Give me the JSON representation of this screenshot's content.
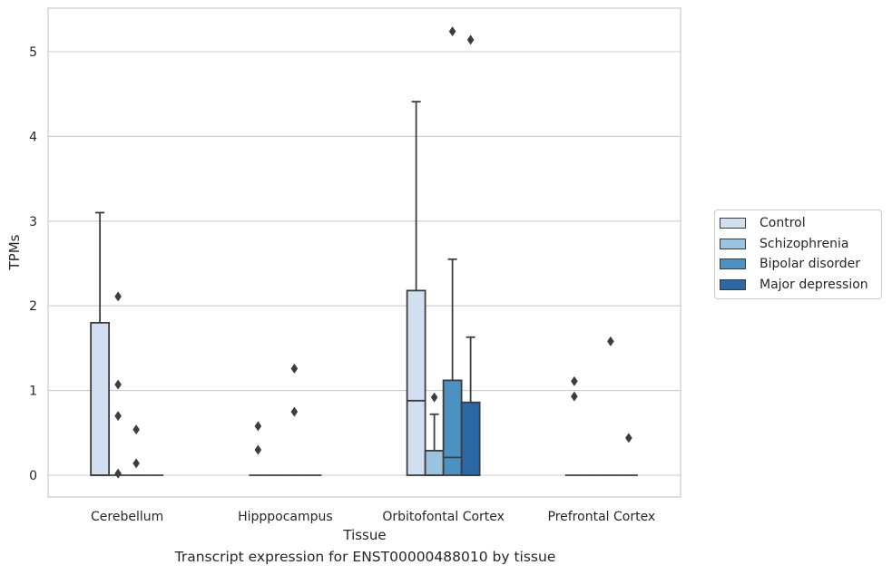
{
  "chart_data": {
    "type": "box",
    "ylabel": "TPMs",
    "xlabel": "Tissue",
    "caption": "Transcript expression for ENST00000488010 by tissue",
    "ylim": [
      -0.25,
      5.5
    ],
    "yticks": [
      0,
      1,
      2,
      3,
      4,
      5
    ],
    "ytick_labels": [
      "0",
      "1",
      "2",
      "3",
      "4",
      "5"
    ],
    "grid": true,
    "legend_position": "right",
    "categories": [
      "Cerebellum",
      "Hipppocampus",
      "Orbitofontal Cortex",
      "Prefrontal Cortex"
    ],
    "series": [
      {
        "name": "Control",
        "color": "#d1e0f0",
        "boxes": [
          {
            "q1": 0,
            "median": 0,
            "q3": 1.8,
            "whislo": 0,
            "whishi": 3.1,
            "fliers": []
          },
          {
            "q1": 0,
            "median": 0,
            "q3": 0,
            "whislo": 0,
            "whishi": 0,
            "fliers": [
              0.3,
              0.58
            ]
          },
          {
            "q1": 0,
            "median": 0.88,
            "q3": 2.18,
            "whislo": 0,
            "whishi": 4.41,
            "fliers": []
          },
          {
            "q1": 0,
            "median": 0,
            "q3": 0,
            "whislo": 0,
            "whishi": 0,
            "fliers": [
              0.93,
              1.11
            ]
          }
        ]
      },
      {
        "name": "Schizophrenia",
        "color": "#9cc3dd",
        "boxes": [
          {
            "q1": 0,
            "median": 0,
            "q3": 0,
            "whislo": 0,
            "whishi": 0,
            "fliers": [
              0.02,
              0.7,
              1.07,
              2.11
            ]
          },
          {
            "q1": 0,
            "median": 0,
            "q3": 0,
            "whislo": 0,
            "whishi": 0,
            "fliers": []
          },
          {
            "q1": 0,
            "median": 0,
            "q3": 0.29,
            "whislo": 0,
            "whishi": 0.72,
            "fliers": [
              0.92
            ]
          },
          {
            "q1": 0,
            "median": 0,
            "q3": 0,
            "whislo": 0,
            "whishi": 0,
            "fliers": []
          }
        ]
      },
      {
        "name": "Bipolar disorder",
        "color": "#4b92c3",
        "boxes": [
          {
            "q1": 0,
            "median": 0,
            "q3": 0,
            "whislo": 0,
            "whishi": 0,
            "fliers": [
              0.14,
              0.54
            ]
          },
          {
            "q1": 0,
            "median": 0,
            "q3": 0,
            "whislo": 0,
            "whishi": 0,
            "fliers": [
              0.75,
              1.26
            ]
          },
          {
            "q1": 0,
            "median": 0.21,
            "q3": 1.12,
            "whislo": 0,
            "whishi": 2.55,
            "fliers": [
              5.24
            ]
          },
          {
            "q1": 0,
            "median": 0,
            "q3": 0,
            "whislo": 0,
            "whishi": 0,
            "fliers": [
              1.58
            ]
          }
        ]
      },
      {
        "name": "Major depression",
        "color": "#2a68a8",
        "boxes": [
          {
            "q1": 0,
            "median": 0,
            "q3": 0,
            "whislo": 0,
            "whishi": 0,
            "fliers": []
          },
          {
            "q1": 0,
            "median": 0,
            "q3": 0,
            "whislo": 0,
            "whishi": 0,
            "fliers": []
          },
          {
            "q1": 0,
            "median": 0,
            "q3": 0.86,
            "whislo": 0,
            "whishi": 1.63,
            "fliers": [
              5.14
            ]
          },
          {
            "q1": 0,
            "median": 0,
            "q3": 0,
            "whislo": 0,
            "whishi": 0,
            "fliers": [
              0.44
            ]
          }
        ]
      }
    ]
  }
}
